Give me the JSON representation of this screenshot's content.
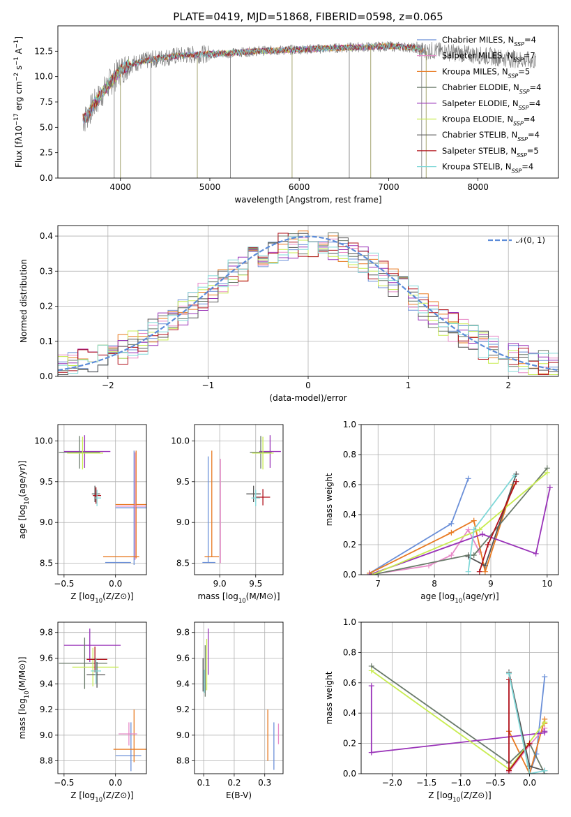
{
  "colors": [
    "#6a8fd8",
    "#e88ac8",
    "#e87a22",
    "#6a7a6a",
    "#9932b8",
    "#c8ec50",
    "#555555",
    "#b0101a",
    "#80d8d8"
  ],
  "chart_data": [
    {
      "id": "spectrum",
      "type": "line",
      "title": "PLATE=0419, MJD=51868, FIBERID=0598, z=0.065",
      "xlabel": "wavelength [Angstrom, rest frame]",
      "ylabel": "Flux [fλ10⁻¹⁷ erg cm⁻² s⁻¹ A⁻¹]",
      "xlim": [
        3300,
        8900
      ],
      "ylim": [
        0,
        15
      ],
      "xticks": [
        4000,
        5000,
        6000,
        7000,
        8000
      ],
      "yticks": [
        0.0,
        2.5,
        5.0,
        7.5,
        10.0,
        12.5
      ],
      "ytick_labels": [
        "0.0",
        "2.5",
        "5.0",
        "7.5",
        "10.0",
        "12.5"
      ],
      "grid": false,
      "legend": "right",
      "series": [
        {
          "name": "Chabrier MILES, N_SSP=4"
        },
        {
          "name": "Salpeter MILES, N_SSP=7"
        },
        {
          "name": "Kroupa MILES, N_SSP=5"
        },
        {
          "name": "Chabrier ELODIE, N_SSP=4"
        },
        {
          "name": "Salpeter ELODIE, N_SSP=4"
        },
        {
          "name": "Kroupa ELODIE, N_SSP=4"
        },
        {
          "name": "Chabrier STELIB, N_SSP=4"
        },
        {
          "name": "Salpeter STELIB, N_SSP=5"
        },
        {
          "name": "Kroupa STELIB, N_SSP=4"
        }
      ],
      "continuum": {
        "x": [
          3600,
          3700,
          3800,
          3900,
          4000,
          4100,
          4300,
          4500,
          4700,
          4900,
          5200,
          5500,
          5800,
          6100,
          6400,
          6700,
          7000,
          7200,
          7300,
          7400
        ],
        "y": [
          5.8,
          7.2,
          8.4,
          9.6,
          10.6,
          11.2,
          11.6,
          11.9,
          12.1,
          12.2,
          12.3,
          12.5,
          12.6,
          12.7,
          12.8,
          12.9,
          13.0,
          12.9,
          12.8,
          12.5
        ]
      }
    },
    {
      "id": "residuals",
      "type": "histogram",
      "xlabel": "(data-model)/error",
      "ylabel": "Normed distribution",
      "xlim": [
        -2.5,
        2.5
      ],
      "ylim": [
        0,
        0.43
      ],
      "xticks": [
        -2,
        -1,
        0,
        1,
        2
      ],
      "xtick_labels": [
        "−2",
        "−1",
        "0",
        "1",
        "2"
      ],
      "yticks": [
        0.0,
        0.1,
        0.2,
        0.3,
        0.4
      ],
      "ytick_labels": [
        "0.0",
        "0.1",
        "0.2",
        "0.3",
        "0.4"
      ],
      "grid": true,
      "legend": "top-right",
      "reference_curve": {
        "name": "𝒩(0, 1)",
        "color": "#5b8bd8"
      },
      "bins": {
        "start": -2.5,
        "width": 0.1,
        "count": 50
      }
    },
    {
      "id": "age_vs_Z",
      "type": "errorbar",
      "xlabel": "Z [log₁₀(Z/Z⊙)]",
      "ylabel": "age  [log₁₀(age/yr)]",
      "xlim": [
        -0.56,
        0.3
      ],
      "ylim": [
        8.36,
        10.2
      ],
      "xticks": [
        -0.5,
        0.0
      ],
      "xtick_labels": [
        "−0.5",
        "0.0"
      ],
      "yticks": [
        8.5,
        9.0,
        9.5,
        10.0
      ],
      "ytick_labels": [
        "8.5",
        "9.0",
        "9.5",
        "10.0"
      ],
      "grid": true,
      "points": [
        {
          "x": 0.18,
          "y": 9.18,
          "xerr": [
            0.18,
            0.18
          ],
          "yerr": [
            0.7,
            0.7
          ],
          "c": 0
        },
        {
          "x": 0.2,
          "y": 9.22,
          "xerr": [
            0.2,
            0.2
          ],
          "yerr": [
            0.66,
            0.66
          ],
          "c": 2
        },
        {
          "x": 0.19,
          "y": 9.2,
          "xerr": [
            0.19,
            0.19
          ],
          "yerr": [
            0.66,
            0.66
          ],
          "c": 1
        },
        {
          "x": 0.05,
          "y": 8.51,
          "xerr": [
            0.15,
            0.1
          ],
          "yerr": [
            0,
            0
          ],
          "c": 0
        },
        {
          "x": 0.08,
          "y": 8.58,
          "xerr": [
            0.2,
            0.15
          ],
          "yerr": [
            0,
            0
          ],
          "c": 2
        },
        {
          "x": -0.3,
          "y": 9.87,
          "xerr": [
            0.2,
            0.25
          ],
          "yerr": [
            0.2,
            0.2
          ],
          "c": 4
        },
        {
          "x": -0.35,
          "y": 9.86,
          "xerr": [
            0.2,
            0.2
          ],
          "yerr": [
            0.2,
            0.2
          ],
          "c": 3
        },
        {
          "x": -0.32,
          "y": 9.85,
          "xerr": [
            0.15,
            0.2
          ],
          "yerr": [
            0.2,
            0.2
          ],
          "c": 5
        },
        {
          "x": -0.2,
          "y": 9.35,
          "xerr": [
            0.03,
            0.05
          ],
          "yerr": [
            0.1,
            0.1
          ],
          "c": 6
        },
        {
          "x": -0.19,
          "y": 9.33,
          "xerr": [
            0.03,
            0.05
          ],
          "yerr": [
            0.1,
            0.1
          ],
          "c": 7
        },
        {
          "x": -0.18,
          "y": 9.3,
          "xerr": [
            0.02,
            0.04
          ],
          "yerr": [
            0.1,
            0.1
          ],
          "c": 8
        }
      ]
    },
    {
      "id": "age_vs_mass",
      "type": "errorbar",
      "xlabel": "mass [log₁₀(M/M⊙)]",
      "xlim": [
        8.65,
        9.88
      ],
      "ylim": [
        8.36,
        10.2
      ],
      "xticks": [
        9.0,
        9.5
      ],
      "xtick_labels": [
        "9.0",
        "9.5"
      ],
      "yticks": [
        8.5,
        9.0,
        9.5,
        10.0
      ],
      "ytick_labels": [
        "8.5",
        "9.0",
        "9.5",
        "10.0"
      ],
      "grid": true,
      "points": [
        {
          "x": 8.84,
          "y": 8.51,
          "xerr": [
            0.08,
            0.1
          ],
          "yerr": [
            0,
            1.3
          ],
          "c": 0
        },
        {
          "x": 8.89,
          "y": 8.58,
          "xerr": [
            0.1,
            0.1
          ],
          "yerr": [
            0,
            1.3
          ],
          "c": 2
        },
        {
          "x": 9.01,
          "y": 8.5,
          "xerr": [
            0,
            0
          ],
          "yerr": [
            0,
            1.28
          ],
          "c": 1
        },
        {
          "x": 9.7,
          "y": 9.87,
          "xerr": [
            0.15,
            0.15
          ],
          "yerr": [
            0.2,
            0.2
          ],
          "c": 4
        },
        {
          "x": 9.57,
          "y": 9.86,
          "xerr": [
            0.15,
            0.15
          ],
          "yerr": [
            0.2,
            0.2
          ],
          "c": 3
        },
        {
          "x": 9.6,
          "y": 9.85,
          "xerr": [
            0.15,
            0.15
          ],
          "yerr": [
            0.2,
            0.2
          ],
          "c": 5
        },
        {
          "x": 9.47,
          "y": 9.35,
          "xerr": [
            0.1,
            0.1
          ],
          "yerr": [
            0.1,
            0.1
          ],
          "c": 6
        },
        {
          "x": 9.6,
          "y": 9.31,
          "xerr": [
            0.1,
            0.1
          ],
          "yerr": [
            0.1,
            0.1
          ],
          "c": 7
        },
        {
          "x": 9.5,
          "y": 9.3,
          "xerr": [
            0.06,
            0.06
          ],
          "yerr": [
            0.1,
            0.1
          ],
          "c": 8
        }
      ]
    },
    {
      "id": "mw_vs_age",
      "type": "line",
      "xlabel": "age  [log₁₀(age/yr)]",
      "ylabel": "mass weight",
      "xlim": [
        6.7,
        10.2
      ],
      "ylim": [
        0,
        1.0
      ],
      "xticks": [
        7,
        8,
        9,
        10
      ],
      "xtick_labels": [
        "7",
        "8",
        "9",
        "10"
      ],
      "yticks": [
        0.0,
        0.2,
        0.4,
        0.6,
        0.8,
        1.0
      ],
      "ytick_labels": [
        "0.0",
        "0.2",
        "0.4",
        "0.6",
        "0.8",
        "1.0"
      ],
      "grid": true,
      "series": [
        {
          "c": 0,
          "x": [
            6.85,
            8.3,
            8.6
          ],
          "y": [
            0.01,
            0.34,
            0.64
          ]
        },
        {
          "c": 1,
          "x": [
            6.85,
            7.9,
            8.3,
            8.6,
            8.8
          ],
          "y": [
            0.0,
            0.06,
            0.13,
            0.3,
            0.15
          ]
        },
        {
          "c": 2,
          "x": [
            6.85,
            8.3,
            8.7,
            8.9,
            9.4
          ],
          "y": [
            0.01,
            0.28,
            0.36,
            0.02,
            0.6
          ]
        },
        {
          "c": 3,
          "x": [
            6.9,
            8.6,
            8.7,
            10.0
          ],
          "y": [
            0.0,
            0.13,
            0.13,
            0.71
          ]
        },
        {
          "c": 4,
          "x": [
            6.85,
            8.85,
            9.8,
            10.05
          ],
          "y": [
            0.0,
            0.27,
            0.14,
            0.58
          ]
        },
        {
          "c": 5,
          "x": [
            6.9,
            8.8,
            10.0
          ],
          "y": [
            0.0,
            0.3,
            0.68
          ]
        },
        {
          "c": 6,
          "x": [
            8.6,
            8.9,
            9.45
          ],
          "y": [
            0.12,
            0.06,
            0.67
          ]
        },
        {
          "c": 7,
          "x": [
            8.8,
            8.95,
            9.45
          ],
          "y": [
            0.02,
            0.2,
            0.62
          ]
        },
        {
          "c": 8,
          "x": [
            8.6,
            8.7,
            9.42
          ],
          "y": [
            0.02,
            0.3,
            0.66
          ]
        }
      ]
    },
    {
      "id": "mass_vs_Z",
      "type": "errorbar",
      "xlabel": "Z [log₁₀(Z/Z⊙)]",
      "ylabel": "mass [log₁₀(M/M⊙)]",
      "xlim": [
        -0.56,
        0.3
      ],
      "ylim": [
        8.7,
        9.88
      ],
      "xticks": [
        -0.5,
        0.0
      ],
      "xtick_labels": [
        "−0.5",
        "0.0"
      ],
      "yticks": [
        8.8,
        9.0,
        9.2,
        9.4,
        9.6,
        9.8
      ],
      "ytick_labels": [
        "8.8",
        "9.0",
        "9.2",
        "9.4",
        "9.6",
        "9.8"
      ],
      "grid": true,
      "points": [
        {
          "x": 0.15,
          "y": 8.84,
          "xerr": [
            0.15,
            0.1
          ],
          "yerr": [
            0.12,
            0.26
          ],
          "c": 0
        },
        {
          "x": 0.18,
          "y": 8.89,
          "xerr": [
            0.2,
            0.15
          ],
          "yerr": [
            0.1,
            0.31
          ],
          "c": 2
        },
        {
          "x": 0.13,
          "y": 9.01,
          "xerr": [
            0.1,
            0.08
          ],
          "yerr": [
            0.09,
            0.09
          ],
          "c": 1
        },
        {
          "x": -0.25,
          "y": 9.7,
          "xerr": [
            0.25,
            0.3
          ],
          "yerr": [
            0.13,
            0.13
          ],
          "c": 4
        },
        {
          "x": -0.3,
          "y": 9.56,
          "xerr": [
            0.25,
            0.22
          ],
          "yerr": [
            0.2,
            0.2
          ],
          "c": 3
        },
        {
          "x": -0.22,
          "y": 9.53,
          "xerr": [
            0.2,
            0.25
          ],
          "yerr": [
            0.15,
            0.15
          ],
          "c": 5
        },
        {
          "x": -0.2,
          "y": 9.59,
          "xerr": [
            0.08,
            0.12
          ],
          "yerr": [
            0.1,
            0.1
          ],
          "c": 7
        },
        {
          "x": -0.18,
          "y": 9.47,
          "xerr": [
            0.1,
            0.08
          ],
          "yerr": [
            0.1,
            0.1
          ],
          "c": 6
        },
        {
          "x": -0.19,
          "y": 9.5,
          "xerr": [
            0.05,
            0.05
          ],
          "yerr": [
            0.1,
            0.1
          ],
          "c": 8
        }
      ]
    },
    {
      "id": "mass_vs_EBV",
      "type": "errorbar",
      "xlabel": "E(B-V)",
      "xlim": [
        0.07,
        0.36
      ],
      "ylim": [
        8.7,
        9.88
      ],
      "xticks": [
        0.1,
        0.2,
        0.3
      ],
      "xtick_labels": [
        "0.1",
        "0.2",
        "0.3"
      ],
      "yticks": [
        8.8,
        9.0,
        9.2,
        9.4,
        9.6,
        9.8
      ],
      "ytick_labels": [
        "8.8",
        "9.0",
        "9.2",
        "9.4",
        "9.6",
        "9.8"
      ],
      "grid": true,
      "points": [
        {
          "x": 0.33,
          "y": 8.9,
          "xerr": [
            0,
            0
          ],
          "yerr": [
            0.17,
            0.2
          ],
          "c": 0
        },
        {
          "x": 0.31,
          "y": 9.0,
          "xerr": [
            0,
            0
          ],
          "yerr": [
            0.2,
            0.2
          ],
          "c": 2
        },
        {
          "x": 0.345,
          "y": 9.01,
          "xerr": [
            0,
            0
          ],
          "yerr": [
            0.08,
            0.08
          ],
          "c": 1
        },
        {
          "x": 0.115,
          "y": 9.65,
          "xerr": [
            0,
            0
          ],
          "yerr": [
            0.18,
            0.18
          ],
          "c": 4
        },
        {
          "x": 0.098,
          "y": 9.47,
          "xerr": [
            0,
            0
          ],
          "yerr": [
            0.13,
            0.13
          ],
          "c": 6
        },
        {
          "x": 0.105,
          "y": 9.5,
          "xerr": [
            0,
            0
          ],
          "yerr": [
            0.2,
            0.2
          ],
          "c": 3
        },
        {
          "x": 0.11,
          "y": 9.55,
          "xerr": [
            0,
            0
          ],
          "yerr": [
            0.2,
            0.2
          ],
          "c": 5
        },
        {
          "x": 0.102,
          "y": 9.42,
          "xerr": [
            0,
            0
          ],
          "yerr": [
            0.09,
            0.09
          ],
          "c": 8
        }
      ]
    },
    {
      "id": "mw_vs_Z",
      "type": "line",
      "xlabel": "Z [log₁₀(Z/Z⊙)]",
      "ylabel": "mass weight",
      "xlim": [
        -2.45,
        0.42
      ],
      "ylim": [
        0,
        1.0
      ],
      "xticks": [
        -2.0,
        -1.5,
        -1.0,
        -0.5,
        0.0
      ],
      "xtick_labels": [
        "−2.0",
        "−1.5",
        "−1.0",
        "−0.5",
        "0.0"
      ],
      "yticks": [
        0.0,
        0.2,
        0.4,
        0.6,
        0.8,
        1.0
      ],
      "ytick_labels": [
        "0.0",
        "0.2",
        "0.4",
        "0.6",
        "0.8",
        "1.0"
      ],
      "grid": true,
      "series": [
        {
          "c": 0,
          "x": [
            0.0,
            0.1,
            0.22
          ],
          "y": [
            0.0,
            0.13,
            0.64
          ]
        },
        {
          "c": 1,
          "x": [
            -0.3,
            0.0,
            0.22
          ],
          "y": [
            0.01,
            0.19,
            0.3
          ]
        },
        {
          "c": 2,
          "x": [
            -0.3,
            0.0,
            0.22,
            0.22
          ],
          "y": [
            0.28,
            0.0,
            0.36,
            0.33
          ]
        },
        {
          "c": 3,
          "x": [
            -2.3,
            -0.3,
            0.0,
            0.22
          ],
          "y": [
            0.71,
            0.07,
            0.2,
            0.0
          ]
        },
        {
          "c": 4,
          "x": [
            -2.3,
            -2.3,
            0.22,
            0.22
          ],
          "y": [
            0.58,
            0.14,
            0.27,
            0.28
          ]
        },
        {
          "c": 5,
          "x": [
            -2.3,
            -0.3,
            0.22
          ],
          "y": [
            0.68,
            0.03,
            0.34
          ]
        },
        {
          "c": 6,
          "x": [
            -0.3,
            0.0,
            0.22
          ],
          "y": [
            0.67,
            0.05,
            0.02
          ]
        },
        {
          "c": 7,
          "x": [
            -0.3,
            -0.3,
            0.0
          ],
          "y": [
            0.62,
            0.02,
            0.2
          ]
        },
        {
          "c": 8,
          "x": [
            -0.3,
            0.0,
            0.22
          ],
          "y": [
            0.66,
            0.0,
            0.02
          ]
        }
      ]
    }
  ]
}
